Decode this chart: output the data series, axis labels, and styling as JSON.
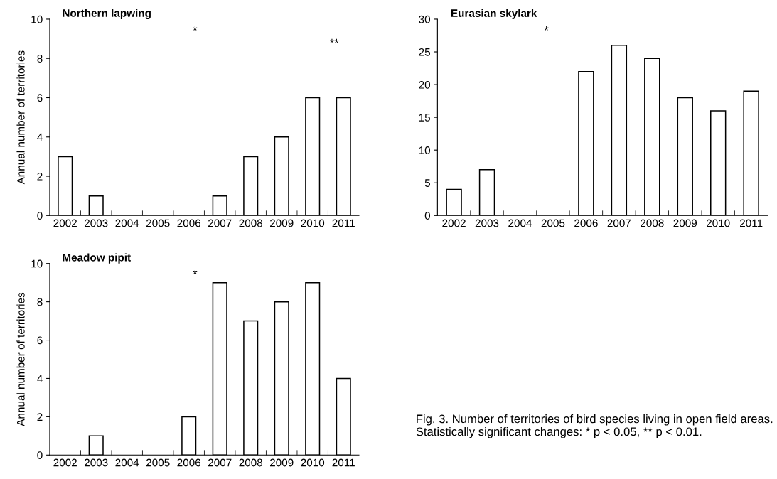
{
  "chart_data": [
    {
      "type": "bar",
      "title": "Northern lapwing",
      "ylabel": "Annual number of territories",
      "categories": [
        "2002",
        "2003",
        "2004",
        "2005",
        "2006",
        "2007",
        "2008",
        "2009",
        "2010",
        "2011"
      ],
      "values": [
        3,
        1,
        0,
        0,
        0,
        1,
        3,
        4,
        6,
        6
      ],
      "color": "#ffffff",
      "ylim": [
        0,
        10
      ],
      "yticks": [
        0,
        2,
        4,
        6,
        8,
        10
      ],
      "grid": false,
      "annotations": [
        "*",
        "**"
      ]
    },
    {
      "type": "bar",
      "title": "Eurasian skylark",
      "categories": [
        "2002",
        "2003",
        "2004",
        "2005",
        "2006",
        "2007",
        "2008",
        "2009",
        "2010",
        "2011"
      ],
      "values": [
        4,
        7,
        0,
        0,
        22,
        26,
        24,
        18,
        16,
        19
      ],
      "color": "#ffffff",
      "ylim": [
        0,
        30
      ],
      "yticks": [
        0,
        5,
        10,
        15,
        20,
        25,
        30
      ],
      "grid": false,
      "annotations": [
        "*"
      ]
    },
    {
      "type": "bar",
      "title": "Meadow pipit",
      "ylabel": "Annual number of territories",
      "categories": [
        "2002",
        "2003",
        "2004",
        "2005",
        "2006",
        "2007",
        "2008",
        "2009",
        "2010",
        "2011"
      ],
      "values": [
        0,
        1,
        0,
        0,
        2,
        9,
        7,
        8,
        9,
        4
      ],
      "color": "#ffffff",
      "ylim": [
        0,
        10
      ],
      "yticks": [
        0,
        2,
        4,
        6,
        8,
        10
      ],
      "grid": false,
      "annotations": [
        "*",
        "Fig. 3. Number of territories of bird species living in open field areas. Statistically significant changes: * p < 0.05, ** p < 0.01."
      ]
    }
  ]
}
